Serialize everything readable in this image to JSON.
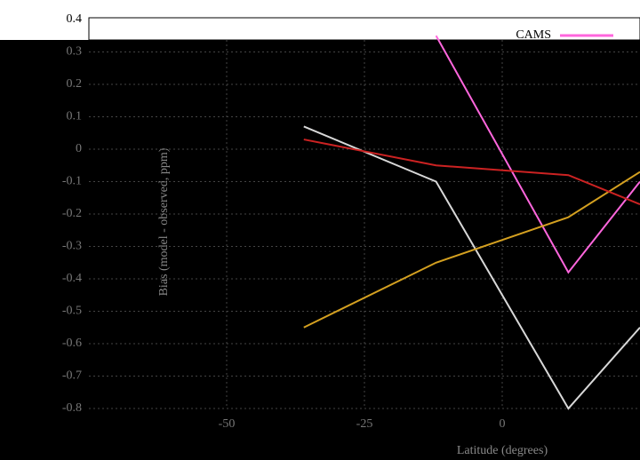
{
  "chart_data": {
    "type": "line",
    "xlabel": "Latitude (degrees)",
    "ylabel": "Bias (model - observed, ppm)",
    "x": [
      -36,
      -12,
      12,
      25
    ],
    "series": [
      {
        "color": "#d8d8d8",
        "values": [
          0.07,
          -0.1,
          -0.8,
          -0.55
        ]
      },
      {
        "name": "CAMS",
        "color": "#ff66dd",
        "values": [
          null,
          0.35,
          -0.38,
          -0.1
        ]
      },
      {
        "color": "#d4a020",
        "values": [
          -0.55,
          -0.35,
          -0.21,
          -0.07
        ]
      },
      {
        "color": "#cc2222",
        "values": [
          0.03,
          -0.05,
          -0.08,
          -0.17
        ]
      }
    ],
    "xlim": [
      -75,
      25
    ],
    "ylim": [
      -0.8,
      0.4
    ],
    "xticks": [
      -50,
      -25,
      0
    ],
    "yticks": [
      0.4,
      0.3,
      0.2,
      0.1,
      0,
      -0.1,
      -0.2,
      -0.3,
      -0.4,
      -0.5,
      -0.6,
      -0.7,
      -0.8
    ],
    "grid": true
  }
}
